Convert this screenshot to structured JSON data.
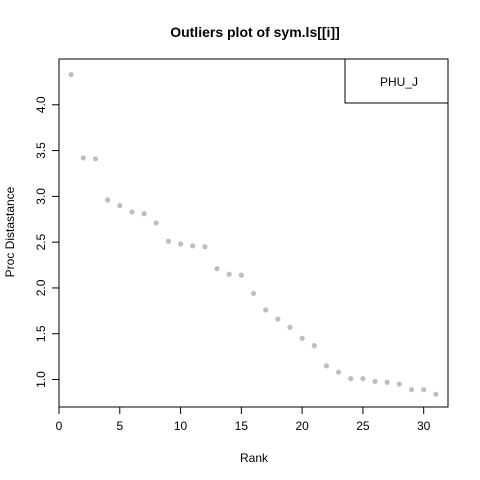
{
  "chart_data": {
    "type": "scatter",
    "title": "Outliers plot of sym.ls[[i]]",
    "xlabel": "Rank",
    "ylabel": "Proc Distastance",
    "xlim": [
      0,
      32
    ],
    "ylim": [
      0.7,
      4.5
    ],
    "xticks": [
      0,
      5,
      10,
      15,
      20,
      25,
      30
    ],
    "yticks": [
      1.0,
      1.5,
      2.0,
      2.5,
      3.0,
      3.5,
      4.0
    ],
    "legend": {
      "placement": "top-right",
      "entries": [
        "PHU_J"
      ]
    },
    "grid": false,
    "point_color": "#bebebe",
    "x": [
      1,
      2,
      3,
      4,
      5,
      6,
      7,
      8,
      9,
      10,
      11,
      12,
      13,
      14,
      15,
      16,
      17,
      18,
      19,
      20,
      21,
      22,
      23,
      24,
      25,
      26,
      27,
      28,
      29,
      30,
      31
    ],
    "y": [
      4.33,
      3.42,
      3.41,
      2.96,
      2.9,
      2.83,
      2.81,
      2.71,
      2.51,
      2.48,
      2.46,
      2.45,
      2.21,
      2.15,
      2.14,
      1.94,
      1.76,
      1.66,
      1.57,
      1.45,
      1.37,
      1.15,
      1.08,
      1.01,
      1.01,
      0.98,
      0.97,
      0.95,
      0.89,
      0.89,
      0.84
    ]
  }
}
